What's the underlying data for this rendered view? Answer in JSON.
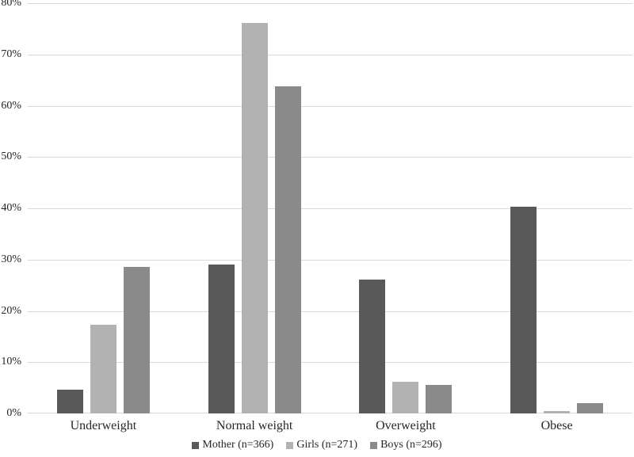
{
  "figure": {
    "background": "#ffffff",
    "text_color": "#262626",
    "gridline_color": "#d9d9d9"
  },
  "chart_data": {
    "type": "bar",
    "title": "",
    "xlabel": "",
    "ylabel": "",
    "categories": [
      "Underweight",
      "Normal weight",
      "Overweight",
      "Obese"
    ],
    "series": [
      {
        "name": "Mother (n=366)",
        "color": "#595959",
        "values": [
          4.6,
          29.0,
          26.1,
          40.3
        ]
      },
      {
        "name": "Girls (n=271)",
        "color": "#b2b2b2",
        "values": [
          17.3,
          76.1,
          6.2,
          0.4
        ]
      },
      {
        "name": "Boys (n=296)",
        "color": "#8a8a8a",
        "values": [
          28.6,
          63.8,
          5.6,
          2.0
        ]
      }
    ],
    "ylim": [
      0,
      80
    ],
    "ytick_step": 10,
    "y_tick_labels": [
      "0%",
      "10%",
      "20%",
      "30%",
      "40%",
      "50%",
      "60%",
      "70%",
      "80%"
    ],
    "ytick_format": "percent",
    "grid": true,
    "legend_position": "bottom"
  }
}
